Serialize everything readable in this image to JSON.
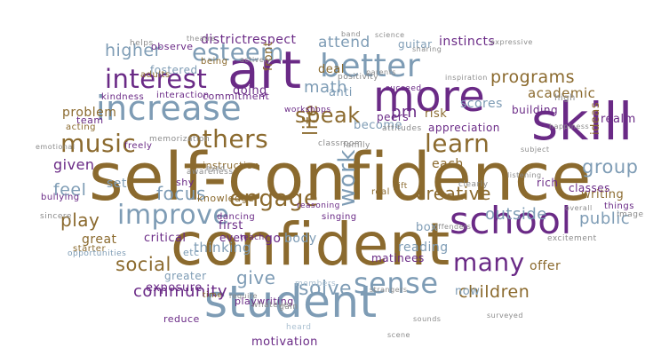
{
  "word_cloud": {
    "colors": {
      "brown": "#8b6a2e",
      "purple": "#6a2a86",
      "blue": "#7e9cb5",
      "gray": "#8b8b8b",
      "lightblue": "#a9bfd0"
    },
    "words": [
      {
        "text": "self-confidence",
        "color": "brown"
      },
      {
        "text": "confident",
        "color": "brown"
      },
      {
        "text": "student",
        "color": "blue"
      },
      {
        "text": "increase",
        "color": "blue"
      },
      {
        "text": "art",
        "color": "purple"
      },
      {
        "text": "skill",
        "color": "purple"
      },
      {
        "text": "more",
        "color": "purple"
      },
      {
        "text": "school",
        "color": "purple"
      },
      {
        "text": "better",
        "color": "blue"
      },
      {
        "text": "interest",
        "color": "purple"
      },
      {
        "text": "esteem",
        "color": "blue"
      },
      {
        "text": "improve",
        "color": "blue"
      },
      {
        "text": "others",
        "color": "brown"
      },
      {
        "text": "sense",
        "color": "blue"
      },
      {
        "text": "music",
        "color": "brown"
      },
      {
        "text": "work",
        "color": "blue"
      },
      {
        "text": "learn",
        "color": "brown"
      },
      {
        "text": "life",
        "color": "brown"
      },
      {
        "text": "speak",
        "color": "brown"
      },
      {
        "text": "engage",
        "color": "brown"
      },
      {
        "text": "many",
        "color": "purple"
      },
      {
        "text": "programs",
        "color": "brown"
      },
      {
        "text": "group",
        "color": "blue"
      },
      {
        "text": "math",
        "color": "blue"
      },
      {
        "text": "higher",
        "color": "blue"
      },
      {
        "text": "attend",
        "color": "blue"
      },
      {
        "text": "give",
        "color": "blue"
      },
      {
        "text": "solve",
        "color": "blue"
      },
      {
        "text": "focus",
        "color": "blue"
      },
      {
        "text": "feel",
        "color": "blue"
      },
      {
        "text": "play",
        "color": "brown"
      },
      {
        "text": "social",
        "color": "brown"
      },
      {
        "text": "creative",
        "color": "brown"
      },
      {
        "text": "outside",
        "color": "blue"
      },
      {
        "text": "public",
        "color": "blue"
      },
      {
        "text": "community",
        "color": "purple"
      },
      {
        "text": "children",
        "color": "brown"
      },
      {
        "text": "district",
        "color": "purple"
      },
      {
        "text": "respect",
        "color": "purple"
      },
      {
        "text": "academic",
        "color": "brown"
      },
      {
        "text": "scores",
        "color": "blue"
      },
      {
        "text": "problem",
        "color": "brown"
      },
      {
        "text": "given",
        "color": "purple"
      },
      {
        "text": "set",
        "color": "blue"
      },
      {
        "text": "reading",
        "color": "blue"
      },
      {
        "text": "motivation",
        "color": "purple"
      },
      {
        "text": "writing",
        "color": "brown"
      },
      {
        "text": "ideas",
        "color": "brown"
      },
      {
        "text": "realm",
        "color": "purple"
      },
      {
        "text": "each",
        "color": "brown"
      },
      {
        "text": "box",
        "color": "blue"
      },
      {
        "text": "pm",
        "color": "purple"
      },
      {
        "text": "become",
        "color": "blue"
      },
      {
        "text": "risk",
        "color": "brown"
      },
      {
        "text": "deal",
        "color": "brown"
      },
      {
        "text": "anti",
        "color": "blue"
      },
      {
        "text": "instincts",
        "color": "purple"
      },
      {
        "text": "guitar",
        "color": "blue"
      },
      {
        "text": "fostered",
        "color": "blue"
      },
      {
        "text": "doing",
        "color": "purple"
      },
      {
        "text": "front",
        "color": "brown"
      },
      {
        "text": "thinking",
        "color": "blue"
      },
      {
        "text": "critical",
        "color": "purple"
      },
      {
        "text": "great",
        "color": "brown"
      },
      {
        "text": "go",
        "color": "purple"
      },
      {
        "text": "body",
        "color": "blue"
      },
      {
        "text": "now",
        "color": "blue"
      },
      {
        "text": "offer",
        "color": "brown"
      },
      {
        "text": "exposure",
        "color": "purple"
      },
      {
        "text": "greater",
        "color": "blue"
      },
      {
        "text": "first",
        "color": "purple"
      },
      {
        "text": "even",
        "color": "purple"
      },
      {
        "text": "appreciation",
        "color": "purple"
      },
      {
        "text": "peers",
        "color": "purple"
      },
      {
        "text": "matinees",
        "color": "purple"
      },
      {
        "text": "knowledge",
        "color": "brown"
      },
      {
        "text": "instruction",
        "color": "brown"
      },
      {
        "text": "observe",
        "color": "purple"
      },
      {
        "text": "helps",
        "color": "gray"
      },
      {
        "text": "commitment",
        "color": "purple"
      },
      {
        "text": "interaction",
        "color": "purple"
      },
      {
        "text": "kindness",
        "color": "purple"
      },
      {
        "text": "team",
        "color": "purple"
      },
      {
        "text": "acting",
        "color": "brown"
      },
      {
        "text": "rich",
        "color": "purple"
      },
      {
        "text": "classes",
        "color": "purple"
      },
      {
        "text": "etc",
        "color": "blue"
      },
      {
        "text": "starter",
        "color": "brown"
      },
      {
        "text": "opportunities",
        "color": "blue"
      },
      {
        "text": "playwriting",
        "color": "purple"
      },
      {
        "text": "real",
        "color": "brown"
      },
      {
        "text": "gift",
        "color": "brown"
      },
      {
        "text": "singing",
        "color": "purple"
      },
      {
        "text": "dancing",
        "color": "purple"
      },
      {
        "text": "shy",
        "color": "purple"
      },
      {
        "text": "freely",
        "color": "purple"
      },
      {
        "text": "building",
        "color": "purple"
      },
      {
        "text": "high",
        "color": "gray"
      },
      {
        "text": "reduce",
        "color": "purple"
      },
      {
        "text": "adults",
        "color": "brown"
      },
      {
        "text": "being",
        "color": "brown"
      },
      {
        "text": "workshops",
        "color": "purple"
      },
      {
        "text": "attitudes",
        "color": "gray"
      },
      {
        "text": "succeed",
        "color": "purple"
      },
      {
        "text": "positivity",
        "color": "gray"
      },
      {
        "text": "inspiration",
        "color": "gray"
      },
      {
        "text": "family",
        "color": "gray"
      },
      {
        "text": "members",
        "color": "lightblue"
      },
      {
        "text": "teach",
        "color": "purple"
      },
      {
        "text": "time",
        "color": "brown"
      },
      {
        "text": "whatever",
        "color": "gray"
      },
      {
        "text": "gain",
        "color": "gray"
      },
      {
        "text": "bullying",
        "color": "purple"
      },
      {
        "text": "things",
        "color": "purple"
      },
      {
        "text": "image",
        "color": "gray"
      },
      {
        "text": "awareness",
        "color": "gray"
      },
      {
        "text": "memorization",
        "color": "gray"
      },
      {
        "text": "classroom",
        "color": "gray"
      },
      {
        "text": "excitement",
        "color": "gray"
      },
      {
        "text": "reasoning",
        "color": "purple"
      },
      {
        "text": "sounds",
        "color": "gray"
      },
      {
        "text": "require",
        "color": "gray"
      },
      {
        "text": "heard",
        "color": "lightblue"
      },
      {
        "text": "surveyed",
        "color": "gray"
      },
      {
        "text": "clearly",
        "color": "gray"
      },
      {
        "text": "actively",
        "color": "gray"
      },
      {
        "text": "parents",
        "color": "gray"
      },
      {
        "text": "sharing",
        "color": "gray"
      },
      {
        "text": "band",
        "color": "gray"
      },
      {
        "text": "theatre",
        "color": "gray"
      },
      {
        "text": "science",
        "color": "gray"
      },
      {
        "text": "happiness",
        "color": "gray"
      },
      {
        "text": "emotional",
        "color": "gray"
      },
      {
        "text": "subject",
        "color": "gray"
      },
      {
        "text": "expressive",
        "color": "gray"
      },
      {
        "text": "listening",
        "color": "gray"
      },
      {
        "text": "overall",
        "color": "gray"
      },
      {
        "text": "eyed",
        "color": "gray"
      },
      {
        "text": "strangers",
        "color": "gray"
      },
      {
        "text": "offenders",
        "color": "gray"
      },
      {
        "text": "scene",
        "color": "gray"
      },
      {
        "text": "sincere",
        "color": "gray"
      }
    ]
  }
}
